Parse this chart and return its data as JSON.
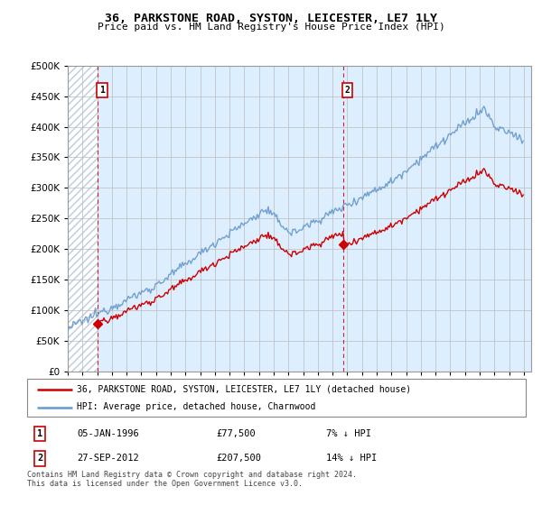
{
  "title": "36, PARKSTONE ROAD, SYSTON, LEICESTER, LE7 1LY",
  "subtitle": "Price paid vs. HM Land Registry's House Price Index (HPI)",
  "sale1_price": 77500,
  "sale1_label": "1",
  "sale1_note": "05-JAN-1996",
  "sale1_pct": "7% ↓ HPI",
  "sale1_year": 1996,
  "sale1_month": 1,
  "sale2_price": 207500,
  "sale2_label": "2",
  "sale2_note": "27-SEP-2012",
  "sale2_pct": "14% ↓ HPI",
  "sale2_year": 2012,
  "sale2_month": 9,
  "legend_line1": "36, PARKSTONE ROAD, SYSTON, LEICESTER, LE7 1LY (detached house)",
  "legend_line2": "HPI: Average price, detached house, Charnwood",
  "footer": "Contains HM Land Registry data © Crown copyright and database right 2024.\nThis data is licensed under the Open Government Licence v3.0.",
  "line_color": "#cc0000",
  "hpi_color": "#6699cc",
  "dashed_line_color": "#cc0000",
  "plot_bg_color": "#ddeeff",
  "ylim": [
    0,
    500000
  ],
  "yticks": [
    0,
    50000,
    100000,
    150000,
    200000,
    250000,
    300000,
    350000,
    400000,
    450000,
    500000
  ],
  "xstart": 1994,
  "xend": 2025
}
